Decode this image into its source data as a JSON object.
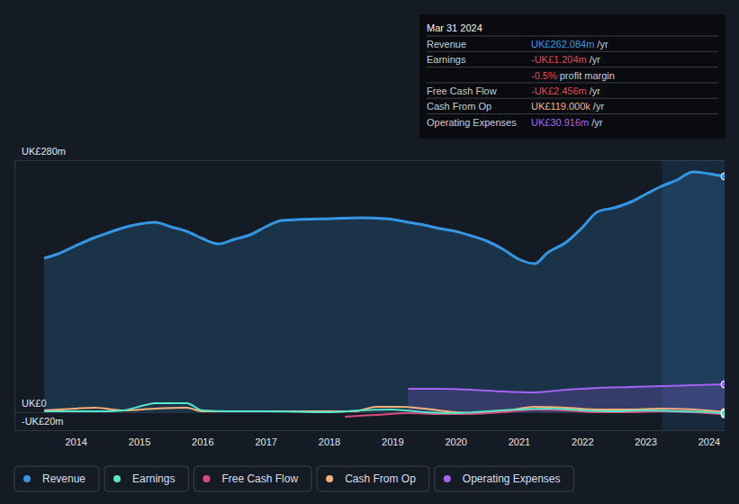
{
  "chart_data": {
    "type": "line",
    "xlim": [
      2013.03,
      2024.25
    ],
    "xticks": [
      2014,
      2015,
      2016,
      2017,
      2018,
      2019,
      2020,
      2021,
      2022,
      2023,
      2024
    ],
    "ylim": [
      -20,
      280
    ],
    "yticks": [
      {
        "value": -20,
        "label": "-UK£20m"
      },
      {
        "value": 0,
        "label": "UK£0"
      },
      {
        "value": 280,
        "label": "UK£280m"
      }
    ],
    "grid": true,
    "legend": "bottom",
    "shaded_range": [
      2023.26,
      2024.25
    ],
    "series": [
      {
        "name": "Revenue",
        "type": "area",
        "color": "#3596e3",
        "x": [
          2013.5,
          2013.72,
          2014.0,
          2014.3,
          2014.5,
          2014.75,
          2015.0,
          2015.25,
          2015.5,
          2015.75,
          2016.0,
          2016.25,
          2016.5,
          2016.75,
          2017.0,
          2017.25,
          2017.5,
          2018.0,
          2018.5,
          2018.9,
          2019.25,
          2019.5,
          2019.75,
          2020.0,
          2020.25,
          2020.5,
          2020.75,
          2021.0,
          2021.25,
          2021.45,
          2021.75,
          2022.0,
          2022.25,
          2022.5,
          2022.75,
          2023.0,
          2023.25,
          2023.5,
          2023.75,
          2024.0,
          2024.25
        ],
        "values": [
          171,
          176,
          185,
          194,
          199,
          205,
          209,
          211,
          206,
          201,
          193,
          187,
          192,
          197,
          206,
          213,
          214,
          215,
          216,
          215,
          211,
          208,
          204,
          201,
          196,
          190,
          181,
          170,
          165,
          177,
          189,
          205,
          223,
          227,
          233,
          242,
          251,
          258,
          267,
          265,
          262.084
        ]
      },
      {
        "name": "Earnings",
        "type": "line",
        "color": "#57e6c8",
        "x": [
          2013.5,
          2014.0,
          2014.5,
          2014.75,
          2015.1,
          2015.25,
          2015.75,
          2016.0,
          2016.5,
          2017.0,
          2018.0,
          2018.5,
          2019.0,
          2019.5,
          2020.0,
          2020.5,
          2021.0,
          2021.5,
          2022.0,
          2022.5,
          2023.0,
          2023.5,
          2024.0,
          2024.25
        ],
        "values": [
          1,
          1,
          1,
          2,
          8,
          10,
          10,
          2,
          1,
          1,
          0,
          2,
          3,
          0,
          -1,
          1,
          3,
          4,
          2,
          1,
          2,
          1,
          0,
          -1.204
        ]
      },
      {
        "name": "Free Cash Flow",
        "type": "line",
        "color": "#d64b80",
        "x": [
          2018.25,
          2018.75,
          2019.25,
          2019.75,
          2020.25,
          2020.75,
          2021.25,
          2021.75,
          2022.25,
          2022.75,
          2023.25,
          2023.75,
          2024.25
        ],
        "values": [
          -5,
          -3,
          -1,
          -2,
          -2,
          0,
          3,
          2,
          0,
          0,
          1,
          0,
          -2.456
        ]
      },
      {
        "name": "Cash From Op",
        "type": "line",
        "color": "#f3b27a",
        "x": [
          2013.5,
          2014.0,
          2014.3,
          2014.75,
          2015.25,
          2015.75,
          2016.0,
          2017.0,
          2018.0,
          2018.4,
          2018.75,
          2019.1,
          2019.5,
          2020.0,
          2020.25,
          2020.75,
          2021.25,
          2021.75,
          2022.25,
          2022.75,
          2023.25,
          2023.75,
          2024.25
        ],
        "values": [
          2,
          4,
          5,
          2,
          4,
          5,
          1,
          1,
          1,
          1,
          6,
          6,
          4,
          0,
          -1,
          1,
          6,
          5,
          3,
          3,
          4,
          3,
          0.119
        ]
      },
      {
        "name": "Operating Expenses",
        "type": "area",
        "color": "#a463f2",
        "x": [
          2019.25,
          2019.75,
          2020.25,
          2020.75,
          2021.25,
          2021.75,
          2022.25,
          2022.75,
          2023.25,
          2023.75,
          2024.25
        ],
        "values": [
          26,
          26,
          25,
          23,
          22,
          25,
          27,
          28,
          29,
          30,
          30.916
        ]
      }
    ],
    "tooltip": {
      "date": "Mar 31 2024",
      "rows": [
        {
          "label": "Revenue",
          "value": "UK£262.084m",
          "suffix": "/yr",
          "color": "#3596e3"
        },
        {
          "label": "Earnings",
          "value": "-UK£1.204m",
          "suffix": "/yr",
          "color": "#e8454e"
        },
        {
          "value": "-0.5%",
          "suffix": "profit margin",
          "color": "#e8454e"
        },
        {
          "label": "Free Cash Flow",
          "value": "-UK£2.456m",
          "suffix": "/yr",
          "color": "#e8454e"
        },
        {
          "label": "Cash From Op",
          "value": "UK£119.000k",
          "suffix": "/yr",
          "color": "#f3b27a"
        },
        {
          "label": "Operating Expenses",
          "value": "UK£30.916m",
          "suffix": "/yr",
          "color": "#a463f2"
        }
      ]
    }
  }
}
